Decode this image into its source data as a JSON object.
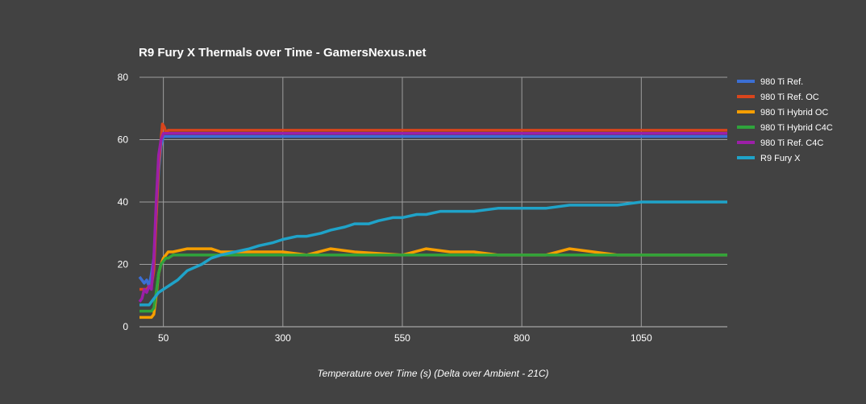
{
  "chart_data": {
    "type": "line",
    "title": "R9 Fury X Thermals over Time - GamersNexus.net",
    "xlabel": "Temperature over Time (s) (Delta over Ambient - 21C)",
    "ylabel": "",
    "xlim": [
      0,
      1230
    ],
    "ylim": [
      0,
      80
    ],
    "x_ticks": [
      50,
      300,
      550,
      800,
      1050
    ],
    "y_ticks": [
      0,
      20,
      40,
      60,
      80
    ],
    "grid": true,
    "legend_position": "right",
    "series": [
      {
        "name": "980 Ti Ref.",
        "color": "#3b6fd4",
        "x": [
          0,
          5,
          10,
          15,
          20,
          25,
          30,
          35,
          40,
          45,
          50,
          60,
          100,
          200,
          300,
          400,
          500,
          600,
          700,
          800,
          900,
          1000,
          1100,
          1230
        ],
        "y": [
          16,
          15,
          14,
          15,
          13,
          17,
          22,
          35,
          50,
          58,
          61,
          61,
          61,
          61,
          61,
          61,
          61,
          61,
          61,
          61,
          61,
          61,
          61,
          61
        ]
      },
      {
        "name": "980 Ti Ref. OC",
        "color": "#d9451c",
        "x": [
          0,
          5,
          10,
          15,
          20,
          25,
          30,
          35,
          40,
          45,
          48,
          52,
          56,
          60,
          100,
          200,
          300,
          400,
          500,
          600,
          700,
          800,
          900,
          1000,
          1100,
          1230
        ],
        "y": [
          12,
          12,
          12,
          12,
          13,
          13,
          18,
          35,
          52,
          60,
          65,
          64,
          62,
          63,
          63,
          63,
          63,
          63,
          63,
          63,
          63,
          63,
          63,
          63,
          63,
          63
        ]
      },
      {
        "name": "980 Ti Hybrid OC",
        "color": "#f59e00",
        "x": [
          0,
          10,
          20,
          25,
          30,
          35,
          40,
          45,
          50,
          55,
          60,
          70,
          100,
          150,
          170,
          200,
          300,
          350,
          400,
          450,
          550,
          600,
          650,
          700,
          750,
          800,
          850,
          900,
          950,
          1000,
          1100,
          1230
        ],
        "y": [
          3,
          3,
          3,
          3,
          4,
          10,
          17,
          20,
          22,
          23,
          24,
          24,
          25,
          25,
          24,
          24,
          24,
          23,
          25,
          24,
          23,
          25,
          24,
          24,
          23,
          23,
          23,
          25,
          24,
          23,
          23,
          23
        ]
      },
      {
        "name": "980 Ti Hybrid C4C",
        "color": "#2fa33b",
        "x": [
          0,
          10,
          20,
          25,
          30,
          35,
          40,
          45,
          50,
          55,
          60,
          70,
          100,
          200,
          300,
          400,
          500,
          600,
          700,
          800,
          900,
          1000,
          1100,
          1230
        ],
        "y": [
          5,
          5,
          5,
          5,
          6,
          11,
          17,
          20,
          21,
          22,
          22,
          23,
          23,
          23,
          23,
          23,
          23,
          23,
          23,
          23,
          23,
          23,
          23,
          23
        ]
      },
      {
        "name": "980 Ti Ref. C4C",
        "color": "#9c1fa8",
        "x": [
          0,
          5,
          10,
          15,
          20,
          25,
          30,
          35,
          40,
          45,
          50,
          60,
          100,
          200,
          300,
          400,
          500,
          600,
          700,
          800,
          900,
          1000,
          1100,
          1230
        ],
        "y": [
          8,
          9,
          12,
          11,
          13,
          12,
          22,
          40,
          55,
          60,
          62,
          62,
          62,
          62,
          62,
          62,
          62,
          62,
          62,
          62,
          62,
          62,
          62,
          62
        ]
      },
      {
        "name": "R9 Fury X",
        "color": "#1fa3c9",
        "x": [
          0,
          10,
          20,
          30,
          40,
          50,
          60,
          80,
          100,
          130,
          150,
          170,
          200,
          230,
          250,
          280,
          300,
          330,
          350,
          380,
          400,
          430,
          450,
          480,
          500,
          530,
          550,
          580,
          600,
          630,
          650,
          700,
          750,
          800,
          850,
          900,
          950,
          1000,
          1050,
          1100,
          1150,
          1230
        ],
        "y": [
          7,
          7,
          7,
          9,
          11,
          12,
          13,
          15,
          18,
          20,
          22,
          23,
          24,
          25,
          26,
          27,
          28,
          29,
          29,
          30,
          31,
          32,
          33,
          33,
          34,
          35,
          35,
          36,
          36,
          37,
          37,
          37,
          38,
          38,
          38,
          39,
          39,
          39,
          40,
          40,
          40,
          40
        ]
      }
    ]
  }
}
